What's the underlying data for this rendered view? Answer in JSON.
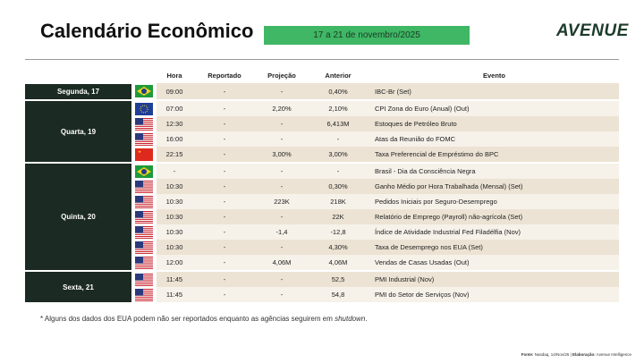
{
  "header": {
    "title": "Calendário Econômico",
    "date_range": "17 a 21 de novembro/2025",
    "logo": "AVENUE"
  },
  "table": {
    "columns": [
      "Hora",
      "Reportado",
      "Projeção",
      "Anterior",
      "Evento"
    ],
    "days": [
      {
        "label": "Segunda, 17",
        "rows": [
          [
            "09:00",
            "-",
            "-",
            "0,40%",
            "IBC-Br (Set)"
          ]
        ]
      },
      {
        "label": "Quarta, 19",
        "rows": [
          [
            "07:00",
            "-",
            "2,20%",
            "2,10%",
            "CPI Zona do Euro (Anual) (Out)"
          ],
          [
            "12:30",
            "-",
            "-",
            "6,413M",
            "Estoques de Petróleo Bruto"
          ],
          [
            "16:00",
            "-",
            "-",
            "-",
            "Atas da Reunião do FOMC"
          ],
          [
            "22:15",
            "-",
            "3,00%",
            "3,00%",
            "Taxa Preferencial de Empréstimo do BPC"
          ]
        ]
      },
      {
        "label": "Quinta, 20",
        "rows": [
          [
            "-",
            "-",
            "-",
            "-",
            "Brasil - Dia da Consciência Negra"
          ],
          [
            "10:30",
            "-",
            "-",
            "0,30%",
            "Ganho Médio por Hora Trabalhada (Mensal) (Set)"
          ],
          [
            "10:30",
            "-",
            "223K",
            "218K",
            "Pedidos Iniciais por Seguro-Desemprego"
          ],
          [
            "10:30",
            "-",
            "-",
            "22K",
            "Relatório de Emprego (Payroll) não-agrícola (Set)"
          ],
          [
            "10:30",
            "-",
            "-1,4",
            "-12,8",
            "Índice de Atividade Industrial Fed Filadélfia (Nov)"
          ],
          [
            "10:30",
            "-",
            "-",
            "4,30%",
            "Taxa de Desemprego nos EUA (Set)"
          ],
          [
            "12:00",
            "-",
            "4,06M",
            "4,06M",
            "Vendas de Casas Usadas (Out)"
          ]
        ]
      },
      {
        "label": "Sexta, 21",
        "rows": [
          [
            "11:45",
            "-",
            "-",
            "52,5",
            "PMI Industrial (Nov)"
          ],
          [
            "11:45",
            "-",
            "-",
            "54,8",
            "PMI do Setor de Serviços (Nov)"
          ]
        ]
      }
    ]
  },
  "footnote": {
    "prefix": "* Alguns dos dados dos EUA podem não ser reportados enquanto as agências seguirem em",
    "emphasis": "shutdown",
    "suffix": "."
  },
  "source": {
    "label1": "Fonte:",
    "text1": "Nasdaq, 14/Nov/25 |",
    "label2": "Elaboração:",
    "text2": "Avenue Intelligence"
  }
}
